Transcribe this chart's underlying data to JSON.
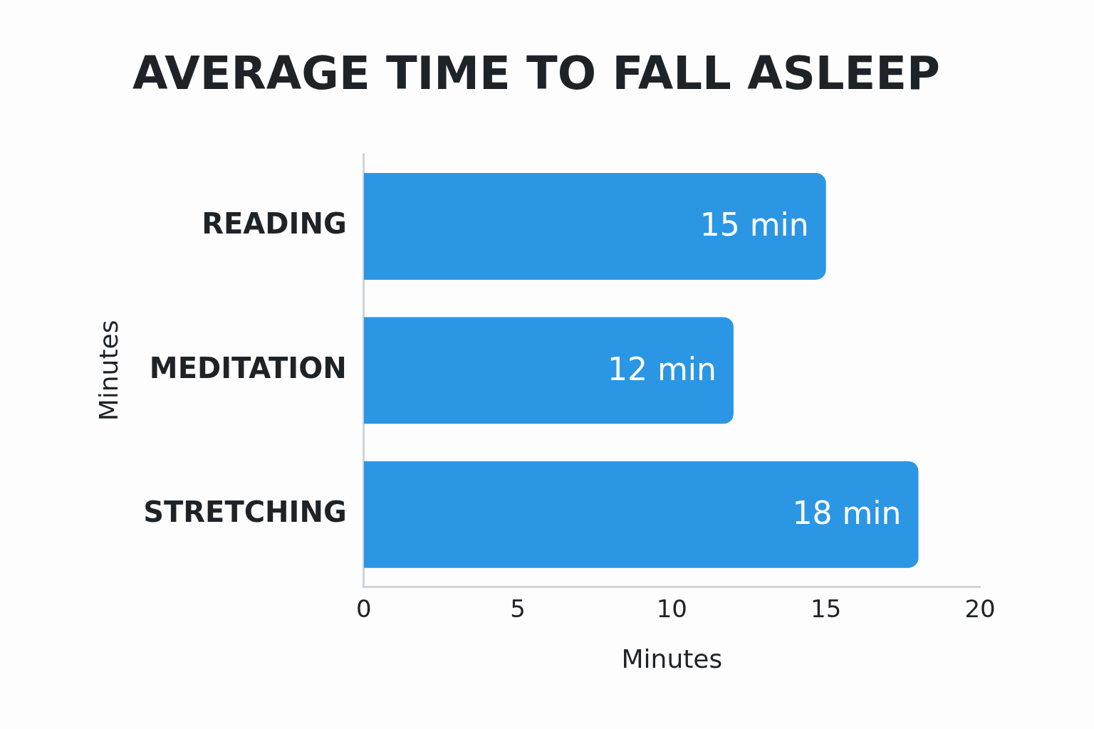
{
  "chart_data": {
    "type": "bar",
    "orientation": "horizontal",
    "title": "AVERAGE TIME TO FALL ASLEEP",
    "xlabel": "Minutes",
    "ylabel": "Minutes",
    "categories": [
      "READING",
      "MEDITATION",
      "STRETCHING"
    ],
    "values": [
      15,
      12,
      18
    ],
    "color": "#2b96e4",
    "xlim": [
      0,
      20
    ],
    "xticks": [
      0,
      5,
      10,
      15,
      20
    ],
    "grid": false,
    "legend": false,
    "data_labels": true,
    "value_labels": [
      "15 min",
      "12 min",
      "18 min"
    ]
  }
}
